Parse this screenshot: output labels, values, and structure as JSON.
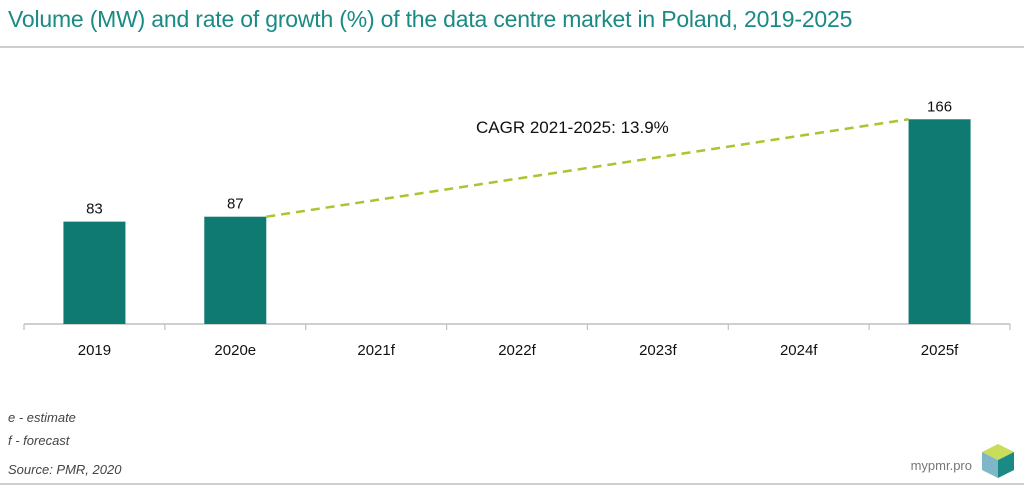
{
  "header": {
    "title": "Volume (MW) and rate of growth (%) of the data centre market in Poland, 2019-2025"
  },
  "chart_data": {
    "type": "bar",
    "categories": [
      "2019",
      "2020e",
      "2021f",
      "2022f",
      "2023f",
      "2024f",
      "2025f"
    ],
    "values": [
      83,
      87,
      null,
      null,
      null,
      null,
      166
    ],
    "data_labels": [
      "83",
      "87",
      "",
      "",
      "",
      "",
      "166"
    ],
    "bar_color": "#0f7a72",
    "annotation": {
      "text": "CAGR 2021-2025: 13.9%",
      "from_category": "2020e",
      "to_category": "2025f",
      "line_style": "dashed",
      "color": "#a9c52f"
    },
    "ylim": [
      0,
      180
    ],
    "grid": false,
    "legend": "none"
  },
  "footer": {
    "note_e": "e - estimate",
    "note_f": "f - forecast",
    "source": "Source: PMR, 2020",
    "brand": "mypmr.pro"
  }
}
